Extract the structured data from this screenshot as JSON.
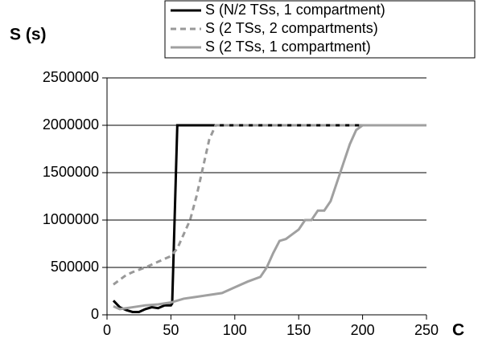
{
  "chart_data": {
    "type": "line",
    "ylabel": "S (s)",
    "xlabel": "C",
    "xlim": [
      0,
      250
    ],
    "xticks": [
      0,
      50,
      100,
      150,
      200,
      250
    ],
    "ylim": [
      0,
      2500000
    ],
    "yticks": [
      0,
      500000,
      1000000,
      1500000,
      2000000,
      2500000
    ],
    "grid": true,
    "legend": "top-right",
    "series": [
      {
        "name": "S (N/2 TSs, 1 compartment)",
        "color": "#000000",
        "linestyle": "solid",
        "x": [
          5,
          10,
          15,
          20,
          25,
          30,
          35,
          40,
          45,
          50,
          51,
          55,
          100,
          150,
          200,
          250
        ],
        "values": [
          150000,
          80000,
          50000,
          30000,
          30000,
          60000,
          80000,
          70000,
          100000,
          100000,
          120000,
          2000000,
          2000000,
          2000000,
          2000000,
          2000000
        ]
      },
      {
        "name": "S (2 TSs, 2 compartments)",
        "color": "#999999",
        "linestyle": "dashed",
        "x": [
          5,
          10,
          15,
          20,
          30,
          40,
          50,
          55,
          60,
          65,
          70,
          75,
          80,
          85,
          150,
          250
        ],
        "values": [
          320000,
          370000,
          420000,
          450000,
          500000,
          560000,
          620000,
          700000,
          850000,
          1000000,
          1250000,
          1550000,
          1850000,
          2000000,
          2000000,
          2000000
        ]
      },
      {
        "name": "S (2 TSs, 1 compartment)",
        "color": "#a0a0a0",
        "linestyle": "solid",
        "x": [
          5,
          10,
          20,
          30,
          40,
          50,
          60,
          70,
          80,
          90,
          100,
          110,
          120,
          125,
          130,
          135,
          140,
          145,
          150,
          155,
          160,
          165,
          170,
          175,
          180,
          185,
          190,
          195,
          200,
          250
        ],
        "values": [
          90000,
          60000,
          80000,
          100000,
          110000,
          130000,
          170000,
          190000,
          210000,
          230000,
          290000,
          350000,
          400000,
          500000,
          650000,
          780000,
          800000,
          850000,
          900000,
          1000000,
          1000000,
          1100000,
          1100000,
          1200000,
          1400000,
          1600000,
          1800000,
          1950000,
          2000000,
          2000000
        ]
      }
    ]
  }
}
